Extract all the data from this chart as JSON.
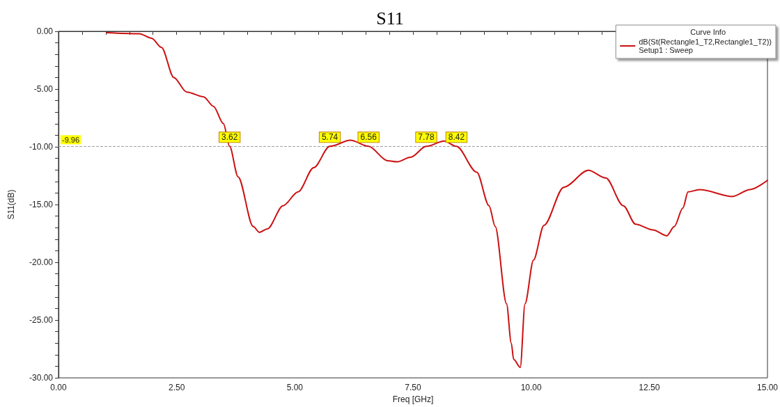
{
  "chart_data": {
    "type": "line",
    "title": "S11",
    "xlabel": "Freq [GHz]",
    "ylabel": "S11(dB)",
    "legend_title": "Curve Info",
    "x": [
      1.02,
      1.71,
      1.97,
      2.18,
      2.44,
      2.71,
      3.07,
      3.28,
      3.49,
      3.62,
      3.8,
      4.12,
      4.25,
      4.42,
      4.75,
      5.07,
      5.4,
      5.74,
      6.18,
      6.56,
      6.96,
      7.16,
      7.45,
      7.78,
      8.16,
      8.42,
      8.85,
      9.11,
      9.24,
      9.48,
      9.58,
      9.63,
      9.77,
      9.87,
      10.05,
      10.27,
      10.69,
      11.21,
      11.58,
      11.95,
      12.21,
      12.58,
      12.87,
      13.03,
      13.21,
      13.32,
      13.57,
      14.26,
      14.63,
      15.0
    ],
    "series": [
      {
        "name": "dB(St(Rectangle1_T2,Rectangle1_T2))\nSetup1 : Sweep",
        "color": "#cc1010",
        "values": [
          -0.12,
          -0.21,
          -0.6,
          -1.4,
          -4.0,
          -5.25,
          -5.67,
          -6.5,
          -8.0,
          -9.96,
          -12.6,
          -16.9,
          -17.4,
          -17.1,
          -15.1,
          -13.9,
          -11.8,
          -9.96,
          -9.43,
          -9.96,
          -11.2,
          -11.3,
          -10.9,
          -9.96,
          -9.5,
          -9.96,
          -12.2,
          -15.1,
          -16.9,
          -23.6,
          -27.0,
          -28.4,
          -29.1,
          -23.6,
          -19.8,
          -16.8,
          -13.5,
          -12.03,
          -12.7,
          -15.1,
          -16.7,
          -17.2,
          -17.7,
          -16.9,
          -15.3,
          -13.9,
          -13.7,
          -14.3,
          -13.7,
          -12.9
        ]
      }
    ],
    "annotations": [
      {
        "text": "3.62",
        "x": 3.62,
        "y": -9.96
      },
      {
        "text": "5.74",
        "x": 5.74,
        "y": -9.96
      },
      {
        "text": "6.56",
        "x": 6.56,
        "y": -9.96
      },
      {
        "text": "7.78",
        "x": 7.78,
        "y": -9.96
      },
      {
        "text": "8.42",
        "x": 8.42,
        "y": -9.96
      }
    ],
    "ref_lines": [
      {
        "axis": "y",
        "value": -9.96,
        "label": "-9.96",
        "color": "#a0a0a0",
        "line_style": "dashed"
      }
    ],
    "xlim": [
      0,
      15
    ],
    "ylim": [
      -30,
      0
    ],
    "xticks": [
      {
        "value": 0,
        "label": "0.00"
      },
      {
        "value": 0.5,
        "label": null
      },
      {
        "value": 1,
        "label": null
      },
      {
        "value": 1.5,
        "label": null
      },
      {
        "value": 2,
        "label": null
      },
      {
        "value": 2.5,
        "label": "2.50"
      },
      {
        "value": 3,
        "label": null
      },
      {
        "value": 3.5,
        "label": null
      },
      {
        "value": 4,
        "label": null
      },
      {
        "value": 4.5,
        "label": null
      },
      {
        "value": 5,
        "label": "5.00"
      },
      {
        "value": 5.5,
        "label": null
      },
      {
        "value": 6,
        "label": null
      },
      {
        "value": 6.5,
        "label": null
      },
      {
        "value": 7,
        "label": null
      },
      {
        "value": 7.5,
        "label": "7.50"
      },
      {
        "value": 8,
        "label": null
      },
      {
        "value": 8.5,
        "label": null
      },
      {
        "value": 9,
        "label": null
      },
      {
        "value": 9.5,
        "label": null
      },
      {
        "value": 10,
        "label": "10.00"
      },
      {
        "value": 10.5,
        "label": null
      },
      {
        "value": 11,
        "label": null
      },
      {
        "value": 11.5,
        "label": null
      },
      {
        "value": 12,
        "label": null
      },
      {
        "value": 12.5,
        "label": "12.50"
      },
      {
        "value": 13,
        "label": null
      },
      {
        "value": 13.5,
        "label": null
      },
      {
        "value": 14,
        "label": null
      },
      {
        "value": 14.5,
        "label": null
      },
      {
        "value": 15,
        "label": "15.00"
      }
    ],
    "yticks": [
      {
        "value": -30,
        "label": "-30.00"
      },
      {
        "value": -29,
        "label": null
      },
      {
        "value": -28,
        "label": null
      },
      {
        "value": -27,
        "label": null
      },
      {
        "value": -26,
        "label": null
      },
      {
        "value": -25,
        "label": "-25.00"
      },
      {
        "value": -24,
        "label": null
      },
      {
        "value": -23,
        "label": null
      },
      {
        "value": -22,
        "label": null
      },
      {
        "value": -21,
        "label": null
      },
      {
        "value": -20,
        "label": "-20.00"
      },
      {
        "value": -19,
        "label": null
      },
      {
        "value": -18,
        "label": null
      },
      {
        "value": -17,
        "label": null
      },
      {
        "value": -16,
        "label": null
      },
      {
        "value": -15,
        "label": "-15.00"
      },
      {
        "value": -14,
        "label": null
      },
      {
        "value": -13,
        "label": null
      },
      {
        "value": -12,
        "label": null
      },
      {
        "value": -11,
        "label": null
      },
      {
        "value": -10,
        "label": "-10.00"
      },
      {
        "value": -9,
        "label": null
      },
      {
        "value": -8,
        "label": null
      },
      {
        "value": -7,
        "label": null
      },
      {
        "value": -6,
        "label": null
      },
      {
        "value": -5,
        "label": "-5.00"
      },
      {
        "value": -4,
        "label": null
      },
      {
        "value": -3,
        "label": null
      },
      {
        "value": -2,
        "label": null
      },
      {
        "value": -1,
        "label": null
      },
      {
        "value": 0,
        "label": "0.00"
      }
    ],
    "grid": false,
    "legend": "top right",
    "marker": "none",
    "line_style": "solid"
  }
}
